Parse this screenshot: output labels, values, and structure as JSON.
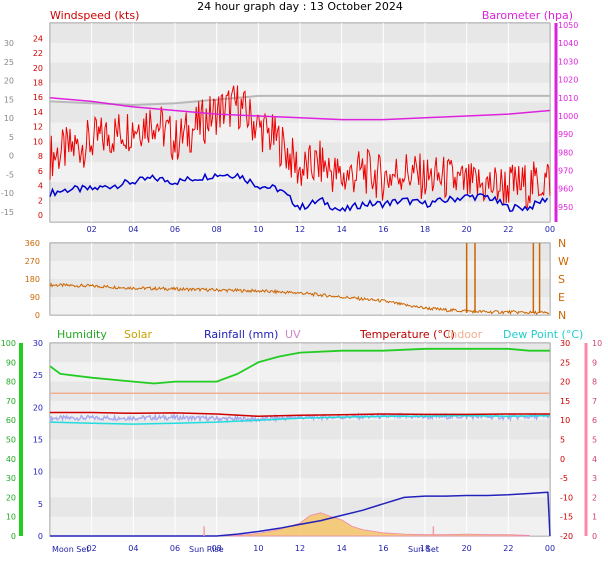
{
  "title": "24 hour graph day : 13 October 2024",
  "colors": {
    "wind": "#ee0000",
    "gust": "#0000cc",
    "baro": "#dd22dd",
    "baro_old": "#b8b8b8",
    "humidity": "#22cc22",
    "solar": "#c8a000",
    "rain": "#2222bb",
    "uv": "#cc66cc",
    "temp": "#cc0000",
    "indoor": "#f0b090",
    "dew": "#22dddd",
    "dir": "#cc6600",
    "band_dark": "#dcdcdc",
    "band_light": "#eeeeee"
  },
  "x_ticks": [
    "02",
    "04",
    "06",
    "08",
    "10",
    "12",
    "14",
    "16",
    "18",
    "20",
    "22",
    "00"
  ],
  "chart_data": [
    {
      "type": "line",
      "panel": "wind-baro",
      "labels": {
        "wind": "Windspeed (kts)",
        "baro": "Barometer (hpa)"
      },
      "x_range_hours": [
        0,
        24
      ],
      "y_left_ticks": [
        "24",
        "22",
        "20",
        "18",
        "16",
        "14",
        "12",
        "10",
        "8",
        "6",
        "4",
        "2",
        "0"
      ],
      "y_left_range": [
        0,
        25
      ],
      "y_left2_ticks": [
        "30",
        "25",
        "20",
        "15",
        "10",
        "5",
        "0",
        "-5",
        "-10",
        "-15"
      ],
      "y_right_ticks": [
        "1050",
        "1040",
        "1030",
        "1020",
        "1010",
        "1000",
        "990",
        "980",
        "970",
        "960",
        "950"
      ],
      "y_right_range": [
        945,
        1050
      ],
      "series": [
        {
          "key": "wind",
          "hours": [
            0,
            1,
            2,
            3,
            4,
            5,
            6,
            7,
            8,
            9,
            10,
            11,
            12,
            13,
            14,
            15,
            16,
            17,
            18,
            19,
            20,
            21,
            22,
            23,
            24
          ],
          "values": [
            8,
            9,
            10,
            11,
            12,
            13,
            10,
            12,
            14,
            15,
            12,
            10,
            6,
            7,
            5,
            6,
            5,
            6,
            5,
            5,
            4,
            4,
            4,
            4,
            5
          ]
        },
        {
          "key": "gust",
          "hours": [
            0,
            1,
            2,
            3,
            4,
            5,
            6,
            7,
            8,
            9,
            10,
            11,
            12,
            13,
            14,
            15,
            16,
            17,
            18,
            19,
            20,
            21,
            22,
            23,
            24
          ],
          "values": [
            3,
            3.5,
            3.5,
            4,
            4.5,
            5,
            4.5,
            5,
            5.5,
            5.5,
            4,
            3.5,
            1,
            2,
            0.5,
            1.5,
            1.5,
            2,
            1.5,
            2,
            2.5,
            2.5,
            1,
            1,
            2.5
          ]
        },
        {
          "key": "baro",
          "hours": [
            0,
            2,
            4,
            6,
            8,
            10,
            12,
            14,
            16,
            18,
            20,
            22,
            24
          ],
          "values": [
            1010,
            1008,
            1005,
            1003,
            1001,
            1000,
            999,
            998,
            998,
            999,
            1000,
            1001,
            1003
          ]
        },
        {
          "key": "baro_old",
          "hours": [
            0,
            2,
            4,
            6,
            8,
            10,
            12,
            14,
            16,
            18,
            20,
            22,
            24
          ],
          "values": [
            1008,
            1007,
            1006,
            1007,
            1009,
            1011,
            1011,
            1011,
            1011,
            1011,
            1011,
            1011,
            1011
          ]
        }
      ]
    },
    {
      "type": "line",
      "panel": "direction",
      "x_range_hours": [
        0,
        24
      ],
      "y_left_ticks": [
        "360",
        "270",
        "180",
        "90",
        "0"
      ],
      "y_left_range": [
        0,
        360
      ],
      "y_right_ticks": [
        "N",
        "W",
        "S",
        "E",
        "N"
      ],
      "series": [
        {
          "key": "dir",
          "hours": [
            0,
            2,
            4,
            6,
            8,
            10,
            12,
            14,
            16,
            17,
            18,
            19,
            20,
            21,
            22,
            23,
            24
          ],
          "values": [
            150,
            145,
            135,
            130,
            125,
            120,
            110,
            90,
            70,
            50,
            35,
            25,
            20,
            15,
            15,
            12,
            10
          ]
        }
      ]
    },
    {
      "type": "line",
      "panel": "temp-hum-rain",
      "labels": {
        "humidity": "Humidity",
        "solar": "Solar",
        "rain": "Rainfall (mm)",
        "uv": "UV",
        "temp": "Temperature (°C)",
        "indoor": "Indoor",
        "dew": "Dew Point (°C)"
      },
      "x_range_hours": [
        0,
        24
      ],
      "y_hum_ticks": [
        "100",
        "90",
        "80",
        "70",
        "60",
        "50",
        "40",
        "30",
        "20",
        "10",
        "0"
      ],
      "y_rain_ticks": [
        "30",
        "25",
        "20",
        "15",
        "10",
        "5",
        "0"
      ],
      "y_rain_range": [
        0,
        30
      ],
      "y_temp_ticks": [
        "30",
        "25",
        "20",
        "15",
        "10",
        "5",
        "0",
        "-5",
        "-10",
        "-15",
        "-20"
      ],
      "y_temp_range": [
        -20,
        30
      ],
      "y_right_ticks": [
        "10",
        "9",
        "8",
        "7",
        "6",
        "5",
        "4",
        "3",
        "2",
        "1",
        "0"
      ],
      "astro_labels": {
        "moon_set": "Moon Set",
        "sun_rise": "Sun Rise",
        "sun_set": "Sun Set"
      },
      "astro_hours": {
        "moon_set": 0.3,
        "sun_rise": 7.4,
        "sun_set": 18.4
      },
      "series": [
        {
          "key": "humidity",
          "hours": [
            0,
            0.5,
            2,
            4,
            5,
            6,
            7,
            8,
            9,
            10,
            11,
            12,
            14,
            16,
            18,
            20,
            22,
            23,
            24
          ],
          "values": [
            88,
            84,
            82,
            80,
            79,
            80,
            80,
            80,
            84,
            90,
            93,
            95,
            96,
            96,
            97,
            97,
            97,
            96,
            96
          ]
        },
        {
          "key": "rain",
          "hours": [
            0,
            7,
            8,
            9,
            10,
            11,
            12,
            13,
            14,
            15,
            16,
            17,
            18,
            19,
            20,
            21,
            22,
            23,
            23.9,
            24
          ],
          "values": [
            0,
            0,
            0,
            0.3,
            0.7,
            1.2,
            1.8,
            2.4,
            3.2,
            4.0,
            5.0,
            6.0,
            6.2,
            6.2,
            6.3,
            6.3,
            6.4,
            6.6,
            6.8,
            0
          ]
        },
        {
          "key": "temp",
          "hours": [
            0,
            2,
            4,
            6,
            8,
            10,
            12,
            14,
            16,
            18,
            20,
            22,
            24
          ],
          "values": [
            12.0,
            12.0,
            11.8,
            11.9,
            11.6,
            11.0,
            11.3,
            11.4,
            11.6,
            11.5,
            11.5,
            11.6,
            11.6
          ]
        },
        {
          "key": "dew",
          "hours": [
            0,
            2,
            4,
            6,
            8,
            10,
            12,
            14,
            16,
            18,
            20,
            22,
            24
          ],
          "values": [
            9.5,
            9.2,
            9.0,
            9.2,
            9.5,
            10.0,
            10.5,
            10.8,
            11.0,
            11.0,
            11.2,
            11.0,
            11.2
          ]
        },
        {
          "key": "uv_band",
          "hours": [
            0,
            2,
            4,
            6,
            8,
            10,
            12,
            14,
            16,
            18,
            20,
            22,
            24
          ],
          "values": [
            10.5,
            10.6,
            10.6,
            10.7,
            10.4,
            10.2,
            10.8,
            10.8,
            11.0,
            10.9,
            11.0,
            10.8,
            11.0
          ]
        },
        {
          "key": "indoor",
          "hours": [
            0,
            2,
            4,
            6,
            8,
            10,
            12,
            14,
            16,
            18,
            20,
            22,
            24
          ],
          "values": [
            17.0,
            17.0,
            17.0,
            17.0,
            17.0,
            17.0,
            17.0,
            17.0,
            17.0,
            17.0,
            17.0,
            17.0,
            17.0
          ]
        },
        {
          "key": "solar",
          "hours": [
            8.5,
            9,
            10,
            11,
            12,
            12.5,
            13,
            13.5,
            14,
            14.5,
            15,
            16,
            17,
            18,
            19,
            20,
            21,
            22,
            23
          ],
          "values": [
            0,
            0.1,
            0.4,
            1.0,
            2.0,
            3.2,
            3.6,
            3.0,
            2.5,
            1.5,
            1.0,
            0.5,
            0.3,
            0.2,
            0.2,
            0.3,
            0.2,
            0.2,
            0.1
          ]
        }
      ]
    }
  ]
}
